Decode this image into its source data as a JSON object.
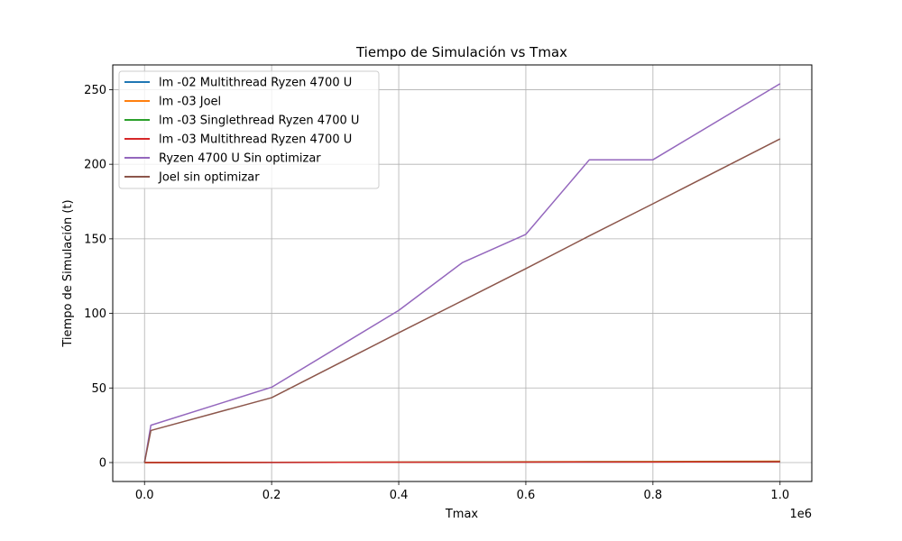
{
  "chart_data": {
    "type": "line",
    "title": "Tiempo de Simulación vs Tmax",
    "xlabel": "Tmax",
    "ylabel": "Tiempo de Simulación (t)",
    "x_offset_text": "1e6",
    "xlim": [
      -0.05,
      1.05
    ],
    "ylim": [
      -12.7,
      266.6
    ],
    "xticks": [
      0.0,
      0.2,
      0.4,
      0.6,
      0.8,
      1.0
    ],
    "xtick_labels": [
      "0.0",
      "0.2",
      "0.4",
      "0.6",
      "0.8",
      "1.0"
    ],
    "yticks": [
      0,
      50,
      100,
      150,
      200,
      250
    ],
    "ytick_labels": [
      "0",
      "50",
      "100",
      "150",
      "200",
      "250"
    ],
    "grid": true,
    "legend_position": "upper-left",
    "series": [
      {
        "name": "lm -02 Multithread Ryzen 4700 U",
        "color": "#1f77b4",
        "x": [
          0.0,
          0.01,
          0.2,
          0.4,
          0.5,
          0.6,
          0.7,
          0.8,
          1.0
        ],
        "y": [
          0.0,
          0.01,
          0.1,
          0.2,
          0.3,
          0.35,
          0.4,
          0.45,
          0.6
        ]
      },
      {
        "name": "lm -03 Joel",
        "color": "#ff7f0e",
        "x": [
          0.0,
          0.01,
          0.2,
          0.4,
          0.5,
          0.6,
          0.7,
          0.8,
          1.0
        ],
        "y": [
          0.0,
          0.01,
          0.15,
          0.3,
          0.4,
          0.5,
          0.6,
          0.7,
          0.9
        ]
      },
      {
        "name": "lm -03 Singlethread Ryzen 4700 U",
        "color": "#2ca02c",
        "x": [
          0.0,
          0.01,
          0.2,
          0.4,
          0.5,
          0.6,
          0.7,
          0.8,
          1.0
        ],
        "y": [
          0.0,
          0.01,
          0.12,
          0.25,
          0.35,
          0.4,
          0.5,
          0.55,
          0.7
        ]
      },
      {
        "name": "lm -03 Multithread Ryzen 4700 U",
        "color": "#d62728",
        "x": [
          0.0,
          0.01,
          0.2,
          0.4,
          0.5,
          0.6,
          0.7,
          0.8,
          1.0
        ],
        "y": [
          0.0,
          0.01,
          0.1,
          0.2,
          0.25,
          0.3,
          0.35,
          0.4,
          0.5
        ]
      },
      {
        "name": "Ryzen 4700 U Sin optimizar",
        "color": "#9467bd",
        "x": [
          0.0,
          0.01,
          0.2,
          0.4,
          0.5,
          0.6,
          0.7,
          0.8,
          1.0
        ],
        "y": [
          0.0,
          25,
          50.5,
          102,
          134,
          153,
          203,
          203,
          254
        ]
      },
      {
        "name": "Joel sin optimizar",
        "color": "#8c564b",
        "x": [
          0.0,
          0.01,
          0.2,
          0.4,
          0.5,
          0.6,
          0.7,
          0.8,
          1.0
        ],
        "y": [
          0.0,
          21.5,
          43.5,
          87,
          108.5,
          130,
          152,
          173.5,
          217
        ]
      }
    ]
  }
}
